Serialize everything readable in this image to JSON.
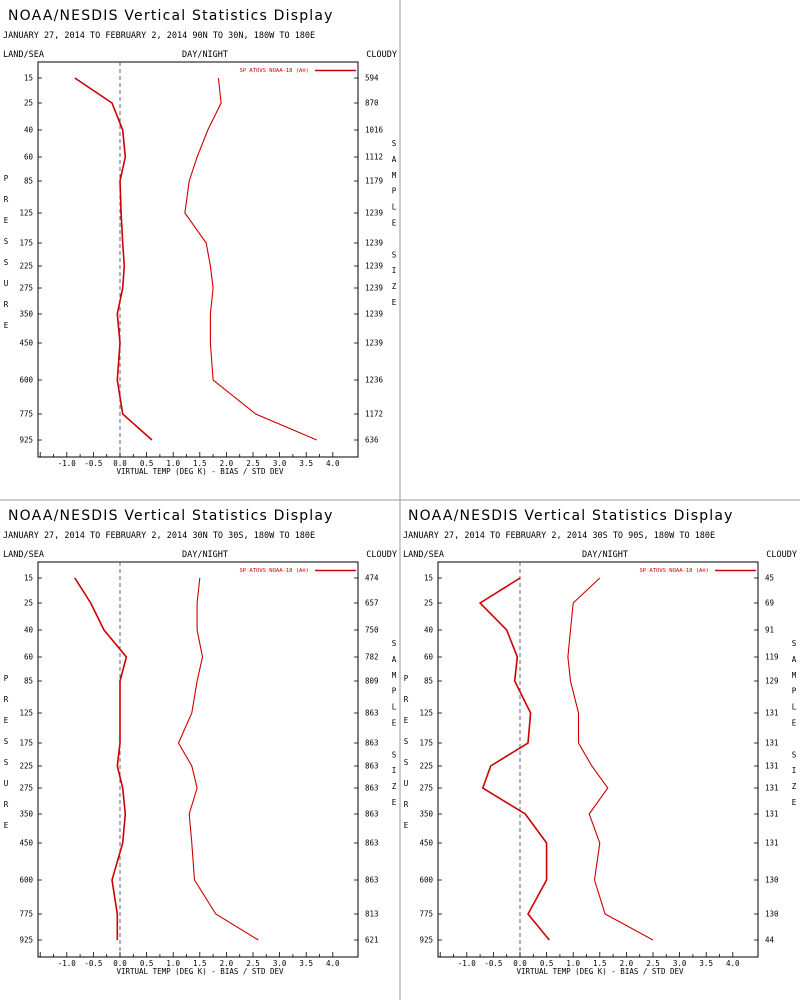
{
  "chart_data": [
    {
      "type": "line",
      "title": "NOAA/NESDIS Vertical Statistics Display",
      "subtitle": "JANUARY 27, 2014 TO FEBRUARY 2, 2014  90N TO 30N, 180W TO 180E",
      "header_left": "LAND/SEA",
      "header_center": "DAY/NIGHT",
      "header_right": "CLOUDY",
      "legend": "SP ATOVS NOAA-18 (A®)",
      "ylabel": "PRESSURE",
      "y2label": "SAMPLE SIZE",
      "xlabel": "VIRTUAL TEMP (DEG K) - BIAS / STD DEV",
      "xlim": [
        -1.5,
        4.2
      ],
      "x_ticks": [
        "-1.0",
        "-0.5",
        "0.0",
        "0.5",
        "1.0",
        "1.5",
        "2.0",
        "2.5",
        "3.0",
        "3.5",
        "4.0"
      ],
      "pressure_levels": [
        "15",
        "25",
        "40",
        "60",
        "85",
        "125",
        "175",
        "225",
        "275",
        "350",
        "450",
        "600",
        "775",
        "925"
      ],
      "sample_size": [
        "594",
        "870",
        "1016",
        "1112",
        "1179",
        "1239",
        "1239",
        "1239",
        "1239",
        "1239",
        "1239",
        "1236",
        "1172",
        "636"
      ],
      "series": [
        {
          "role": "bias",
          "values": [
            -0.85,
            -0.15,
            0.05,
            0.1,
            0.0,
            0.02,
            0.05,
            0.08,
            0.05,
            -0.05,
            0.0,
            -0.05,
            0.05,
            0.6
          ]
        },
        {
          "role": "std",
          "values": [
            1.85,
            1.9,
            1.65,
            1.45,
            1.3,
            1.22,
            1.62,
            1.7,
            1.75,
            1.7,
            1.7,
            1.75,
            2.55,
            3.7
          ]
        }
      ]
    },
    {
      "type": "line",
      "title": "NOAA/NESDIS Vertical Statistics Display",
      "subtitle": "JANUARY 27, 2014 TO FEBRUARY 2, 2014  30N TO 30S, 180W TO 180E",
      "header_left": "LAND/SEA",
      "header_center": "DAY/NIGHT",
      "header_right": "CLOUDY",
      "legend": "SP ATOVS NOAA-18 (A®)",
      "ylabel": "PRESSURE",
      "y2label": "SAMPLE SIZE",
      "xlabel": "VIRTUAL TEMP (DEG K) - BIAS / STD DEV",
      "xlim": [
        -1.5,
        4.2
      ],
      "x_ticks": [
        "-1.0",
        "-0.5",
        "0.0",
        "0.5",
        "1.0",
        "1.5",
        "2.0",
        "2.5",
        "3.0",
        "3.5",
        "4.0"
      ],
      "pressure_levels": [
        "15",
        "25",
        "40",
        "60",
        "85",
        "125",
        "175",
        "225",
        "275",
        "350",
        "450",
        "600",
        "775",
        "925"
      ],
      "sample_size": [
        "474",
        "657",
        "750",
        "782",
        "809",
        "863",
        "863",
        "863",
        "863",
        "863",
        "863",
        "863",
        "813",
        "621"
      ],
      "series": [
        {
          "role": "bias",
          "values": [
            -0.85,
            -0.55,
            -0.3,
            0.12,
            0.0,
            0.0,
            0.0,
            -0.05,
            0.05,
            0.1,
            0.05,
            -0.15,
            -0.05,
            -0.05
          ]
        },
        {
          "role": "std",
          "values": [
            1.5,
            1.45,
            1.45,
            1.55,
            1.45,
            1.35,
            1.1,
            1.35,
            1.45,
            1.3,
            1.35,
            1.4,
            1.8,
            2.6
          ]
        }
      ]
    },
    {
      "type": "line",
      "title": "NOAA/NESDIS Vertical Statistics Display",
      "subtitle": "JANUARY 27, 2014 TO FEBRUARY 2, 2014  30S TO 90S, 180W TO 180E",
      "header_left": "LAND/SEA",
      "header_center": "DAY/NIGHT",
      "header_right": "CLOUDY",
      "legend": "SP ATOVS NOAA-18 (A®)",
      "ylabel": "PRESSURE",
      "y2label": "SAMPLE SIZE",
      "xlabel": "VIRTUAL TEMP (DEG K) - BIAS / STD DEV",
      "xlim": [
        -1.5,
        4.2
      ],
      "x_ticks": [
        "-1.0",
        "-0.5",
        "0.0",
        "0.5",
        "1.0",
        "1.5",
        "2.0",
        "2.5",
        "3.0",
        "3.5",
        "4.0"
      ],
      "pressure_levels": [
        "15",
        "25",
        "40",
        "60",
        "85",
        "125",
        "175",
        "225",
        "275",
        "350",
        "450",
        "600",
        "775",
        "925"
      ],
      "sample_size": [
        "45",
        "69",
        "91",
        "119",
        "129",
        "131",
        "131",
        "131",
        "131",
        "131",
        "131",
        "130",
        "130",
        "44"
      ],
      "series": [
        {
          "role": "bias",
          "values": [
            0.0,
            -0.75,
            -0.25,
            -0.05,
            -0.1,
            0.2,
            0.15,
            -0.55,
            -0.7,
            0.1,
            0.5,
            0.5,
            0.15,
            0.55
          ]
        },
        {
          "role": "std",
          "values": [
            1.5,
            1.0,
            0.95,
            0.9,
            0.95,
            1.1,
            1.1,
            1.35,
            1.65,
            1.3,
            1.5,
            1.4,
            1.6,
            2.5
          ]
        }
      ]
    }
  ]
}
